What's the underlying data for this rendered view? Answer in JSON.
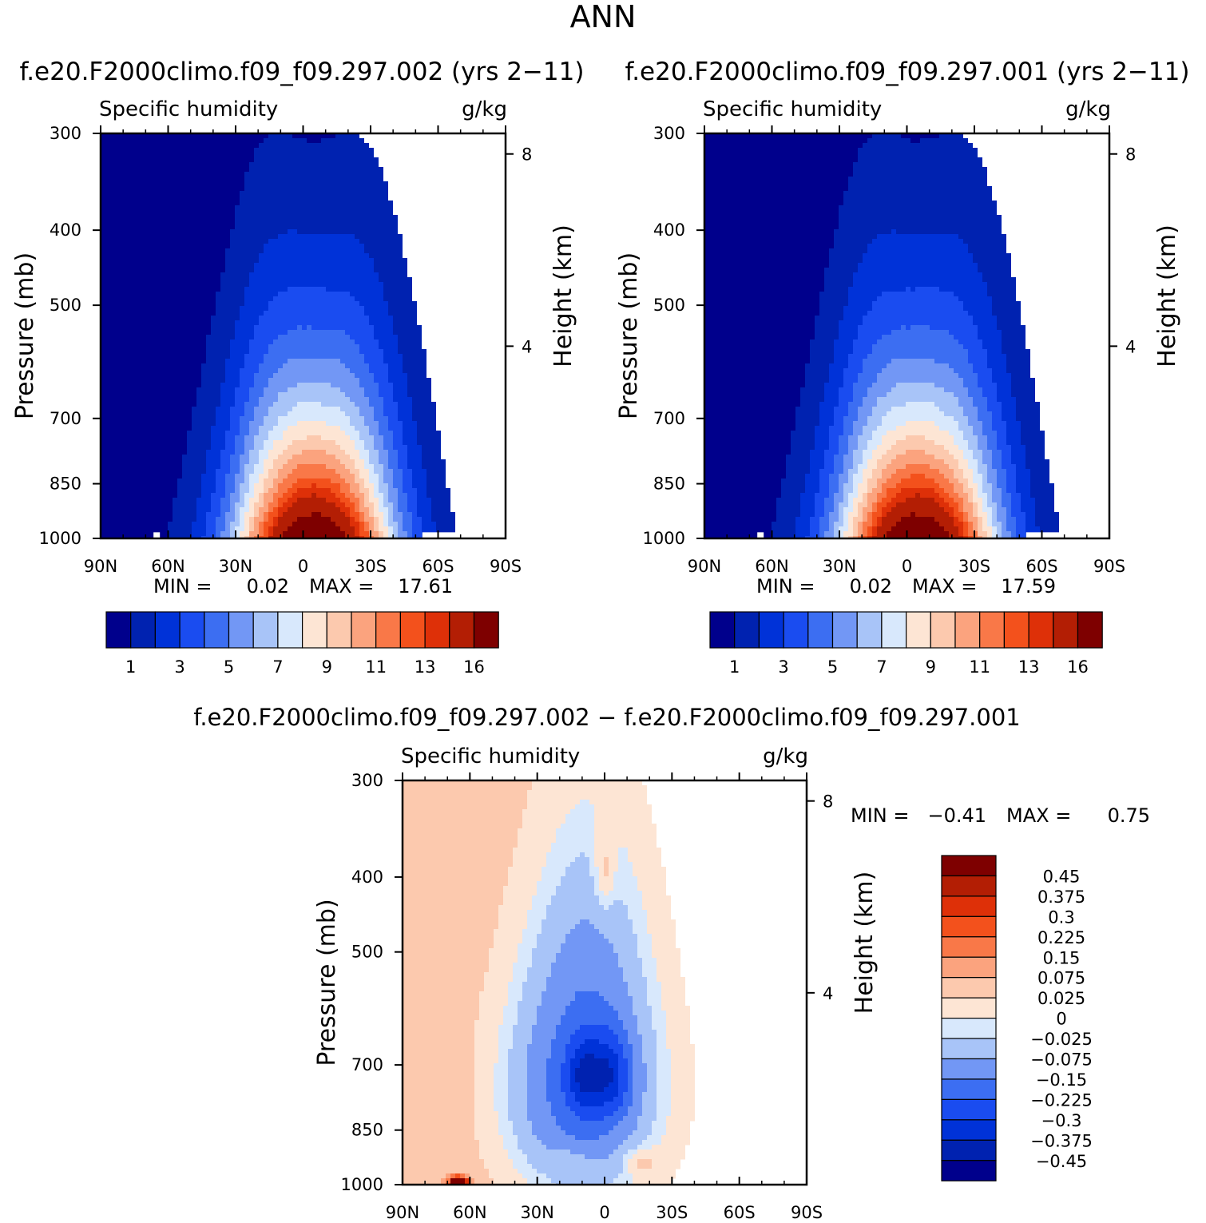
{
  "season": "ANN",
  "colors": {
    "abs_palette": [
      "#00008c",
      "#0022b0",
      "#0032d8",
      "#1a4cf0",
      "#3c6ef2",
      "#7297f5",
      "#a8c4f8",
      "#d8e8fc",
      "#fde5d4",
      "#fcc9ae",
      "#fba37e",
      "#f97848",
      "#f3511c",
      "#de3008",
      "#b31e04",
      "#7e0000"
    ],
    "diff_palette": [
      "#00008c",
      "#0022b0",
      "#0032d8",
      "#1a4cf0",
      "#3c6ef2",
      "#7297f5",
      "#a8c4f8",
      "#d8e8fc",
      "#fde5d4",
      "#fcc9ae",
      "#fba37e",
      "#f97848",
      "#f3511c",
      "#de3008",
      "#b31e04",
      "#7e0000"
    ]
  },
  "chart_data": [
    {
      "id": "case1",
      "type": "contour",
      "title": "f.e20.F2000climo.f09_f09.297.002 (yrs 2−11)",
      "variable": "Specific humidity",
      "units": "g/kg",
      "ylabel": "Pressure (mb)",
      "y2label": "Height (km)",
      "x_ticks": [
        "90N",
        "60N",
        "30N",
        "0",
        "30S",
        "60S",
        "90S"
      ],
      "y_ticks": [
        "300",
        "400",
        "500",
        "700",
        "850",
        "1000"
      ],
      "y_tick_values": [
        300,
        400,
        500,
        700,
        850,
        1000
      ],
      "y2_ticks": [
        "8",
        "4"
      ],
      "y2_tick_values_km": [
        8,
        4
      ],
      "xlim": [
        90,
        -90
      ],
      "ylim": [
        1000,
        300
      ],
      "stats": {
        "min_label": "MIN =",
        "min": "0.02",
        "max_label": "MAX =",
        "max": "17.61"
      },
      "colorbar_labels": [
        "1",
        "3",
        "5",
        "7",
        "9",
        "11",
        "13",
        "16"
      ],
      "peak_value": 17.61
    },
    {
      "id": "case2",
      "type": "contour",
      "title": "f.e20.F2000climo.f09_f09.297.001 (yrs 2−11)",
      "variable": "Specific humidity",
      "units": "g/kg",
      "ylabel": "Pressure (mb)",
      "y2label": "Height (km)",
      "x_ticks": [
        "90N",
        "60N",
        "30N",
        "0",
        "30S",
        "60S",
        "90S"
      ],
      "y_ticks": [
        "300",
        "400",
        "500",
        "700",
        "850",
        "1000"
      ],
      "y_tick_values": [
        300,
        400,
        500,
        700,
        850,
        1000
      ],
      "y2_ticks": [
        "8",
        "4"
      ],
      "y2_tick_values_km": [
        8,
        4
      ],
      "xlim": [
        90,
        -90
      ],
      "ylim": [
        1000,
        300
      ],
      "stats": {
        "min_label": "MIN =",
        "min": "0.02",
        "max_label": "MAX =",
        "max": "17.59"
      },
      "colorbar_labels": [
        "1",
        "3",
        "5",
        "7",
        "9",
        "11",
        "13",
        "16"
      ],
      "peak_value": 17.59
    },
    {
      "id": "diff",
      "type": "contour",
      "title": "f.e20.F2000climo.f09_f09.297.002 − f.e20.F2000climo.f09_f09.297.001",
      "variable": "Specific humidity",
      "units": "g/kg",
      "ylabel": "Pressure (mb)",
      "y2label": "Height (km)",
      "x_ticks": [
        "90N",
        "60N",
        "30N",
        "0",
        "30S",
        "60S",
        "90S"
      ],
      "y_ticks": [
        "300",
        "400",
        "500",
        "700",
        "850",
        "1000"
      ],
      "y_tick_values": [
        300,
        400,
        500,
        700,
        850,
        1000
      ],
      "y2_ticks": [
        "8",
        "4"
      ],
      "y2_tick_values_km": [
        8,
        4
      ],
      "xlim": [
        90,
        -90
      ],
      "ylim": [
        1000,
        300
      ],
      "stats": {
        "min_label": "MIN =",
        "min": "−0.41",
        "max_label": "MAX =",
        "max": "0.75"
      },
      "colorbar_labels": [
        "0.45",
        "0.375",
        "0.3",
        "0.225",
        "0.15",
        "0.075",
        "0.025",
        "0",
        "−0.025",
        "−0.075",
        "−0.15",
        "−0.225",
        "−0.3",
        "−0.375",
        "−0.45"
      ],
      "contour_levels": [
        -0.45,
        -0.375,
        -0.3,
        -0.225,
        -0.15,
        -0.075,
        -0.025,
        0,
        0.025,
        0.075,
        0.15,
        0.225,
        0.3,
        0.375,
        0.45
      ]
    }
  ]
}
